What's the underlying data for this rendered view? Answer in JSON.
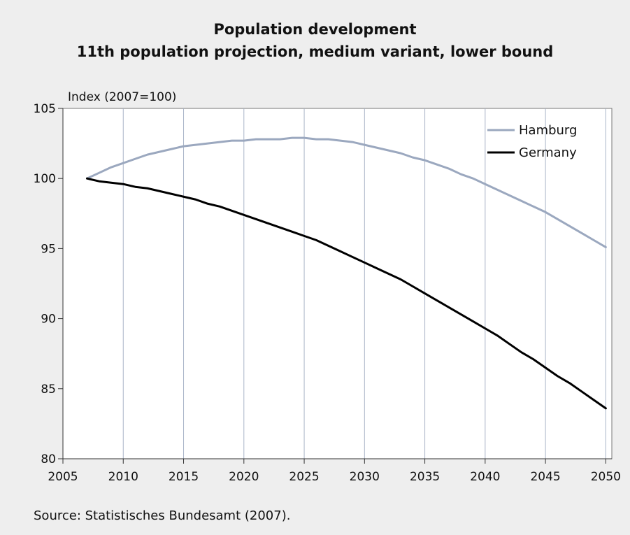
{
  "chart_data": {
    "type": "line",
    "title": "Population development",
    "subtitle": "11th population projection, medium variant, lower bound",
    "ylabel": "Index (2007=100)",
    "xlabel": "",
    "source": "Source: Statistisches Bundesamt (2007).",
    "xlim": [
      2005,
      2050.5
    ],
    "ylim": [
      80,
      105
    ],
    "xticks": [
      2005,
      2010,
      2015,
      2020,
      2025,
      2030,
      2035,
      2040,
      2045,
      2050
    ],
    "yticks": [
      80,
      85,
      90,
      95,
      100,
      105
    ],
    "grid": "vertical",
    "legend": "top-right",
    "x": [
      2007,
      2008,
      2009,
      2010,
      2011,
      2012,
      2013,
      2014,
      2015,
      2016,
      2017,
      2018,
      2019,
      2020,
      2021,
      2022,
      2023,
      2024,
      2025,
      2026,
      2027,
      2028,
      2029,
      2030,
      2031,
      2032,
      2033,
      2034,
      2035,
      2036,
      2037,
      2038,
      2039,
      2040,
      2041,
      2042,
      2043,
      2044,
      2045,
      2046,
      2047,
      2048,
      2049,
      2050
    ],
    "series": [
      {
        "name": "Hamburg",
        "color": "#9ba8bf",
        "values": [
          100.0,
          100.4,
          100.8,
          101.1,
          101.4,
          101.7,
          101.9,
          102.1,
          102.3,
          102.4,
          102.5,
          102.6,
          102.7,
          102.7,
          102.8,
          102.8,
          102.8,
          102.9,
          102.9,
          102.8,
          102.8,
          102.7,
          102.6,
          102.4,
          102.2,
          102.0,
          101.8,
          101.5,
          101.3,
          101.0,
          100.7,
          100.3,
          100.0,
          99.6,
          99.2,
          98.8,
          98.4,
          98.0,
          97.6,
          97.1,
          96.6,
          96.1,
          95.6,
          95.1
        ]
      },
      {
        "name": "Germany",
        "color": "#000000",
        "values": [
          100.0,
          99.8,
          99.7,
          99.6,
          99.4,
          99.3,
          99.1,
          98.9,
          98.7,
          98.5,
          98.2,
          98.0,
          97.7,
          97.4,
          97.1,
          96.8,
          96.5,
          96.2,
          95.9,
          95.6,
          95.2,
          94.8,
          94.4,
          94.0,
          93.6,
          93.2,
          92.8,
          92.3,
          91.8,
          91.3,
          90.8,
          90.3,
          89.8,
          89.3,
          88.8,
          88.2,
          87.6,
          87.1,
          86.5,
          85.9,
          85.4,
          84.8,
          84.2,
          83.6
        ]
      }
    ]
  }
}
